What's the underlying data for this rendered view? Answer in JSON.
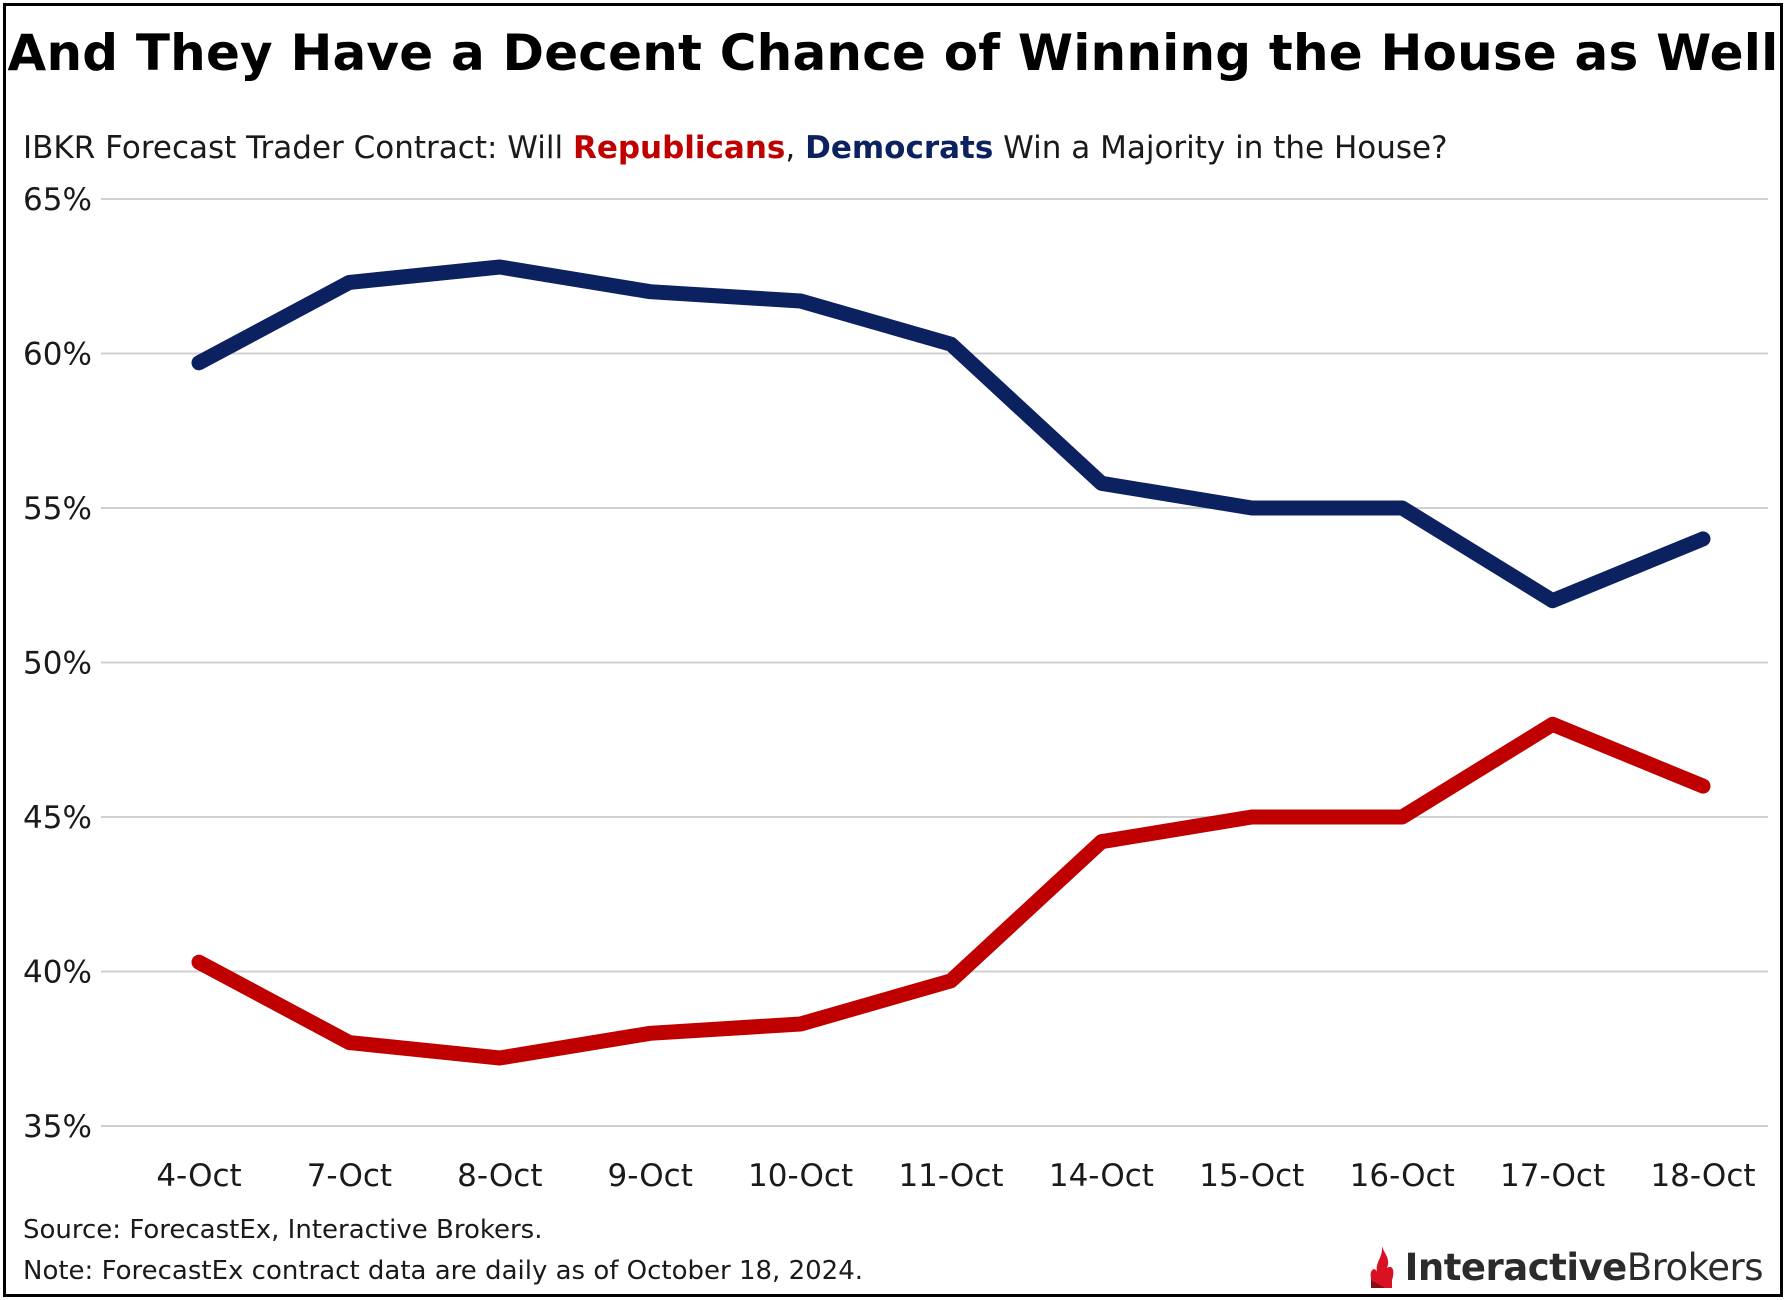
{
  "title": "And They Have a Decent Chance of Winning the House as Well",
  "subtitle": {
    "prefix": "IBKR Forecast Trader Contract: Will ",
    "republicans": "Republicans",
    "comma": ", ",
    "democrats": "Democrats",
    "suffix": " Win a Majority in the House?"
  },
  "colors": {
    "republicans": "#c00000",
    "democrats": "#0b2160",
    "gridline": "#d0d0d0"
  },
  "chart_data": {
    "type": "line",
    "title": "And They Have a Decent Chance of Winning the House as Well",
    "xlabel": "",
    "ylabel": "",
    "categories": [
      "4-Oct",
      "7-Oct",
      "8-Oct",
      "9-Oct",
      "10-Oct",
      "11-Oct",
      "14-Oct",
      "15-Oct",
      "16-Oct",
      "17-Oct",
      "18-Oct"
    ],
    "ylim": [
      35,
      65
    ],
    "yticks": [
      35,
      40,
      45,
      50,
      55,
      60,
      65
    ],
    "ytick_labels": [
      "35%",
      "40%",
      "45%",
      "50%",
      "55%",
      "60%",
      "65%"
    ],
    "grid": true,
    "legend": "in subtitle",
    "series": [
      {
        "name": "Democrats",
        "color": "#0b2160",
        "values": [
          59.7,
          62.3,
          62.8,
          62.0,
          61.7,
          60.3,
          55.8,
          55.0,
          55.0,
          52.0,
          54.0
        ]
      },
      {
        "name": "Republicans",
        "color": "#c00000",
        "values": [
          40.3,
          37.7,
          37.2,
          38.0,
          38.3,
          39.7,
          44.2,
          45.0,
          45.0,
          48.0,
          46.0
        ]
      }
    ]
  },
  "footer": {
    "source": "Source: ForecastEx, Interactive Brokers.",
    "note": "Note: ForecastEx contract data are daily as of October 18, 2024."
  },
  "logo": {
    "name_bold": "Interactive",
    "name_regular": "Brokers",
    "icon": "interactive-brokers-flame-icon"
  }
}
